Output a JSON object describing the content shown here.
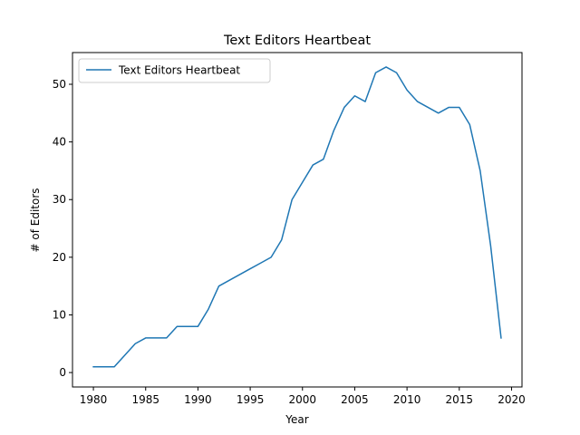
{
  "chart_data": {
    "type": "line",
    "title": "Text Editors Heartbeat",
    "xlabel": "Year",
    "ylabel": "# of Editors",
    "xlim": [
      1978,
      2021
    ],
    "ylim": [
      -2.5,
      55.5
    ],
    "xticks": [
      1980,
      1985,
      1990,
      1995,
      2000,
      2005,
      2010,
      2015,
      2020
    ],
    "yticks": [
      0,
      10,
      20,
      30,
      40,
      50
    ],
    "grid": false,
    "legend_position": "top-left",
    "series": [
      {
        "name": "Text Editors Heartbeat",
        "color": "#1f77b4",
        "x": [
          1980,
          1981,
          1982,
          1983,
          1984,
          1985,
          1986,
          1987,
          1988,
          1989,
          1990,
          1991,
          1992,
          1993,
          1994,
          1995,
          1996,
          1997,
          1998,
          1999,
          2000,
          2001,
          2002,
          2003,
          2004,
          2005,
          2006,
          2007,
          2008,
          2009,
          2010,
          2011,
          2012,
          2013,
          2014,
          2015,
          2016,
          2017,
          2018,
          2019
        ],
        "y": [
          1,
          1,
          1,
          3,
          5,
          6,
          6,
          6,
          8,
          8,
          8,
          11,
          15,
          16,
          17,
          18,
          19,
          20,
          23,
          30,
          33,
          36,
          37,
          42,
          46,
          48,
          47,
          52,
          53,
          52,
          49,
          47,
          46,
          45,
          46,
          46,
          43,
          35,
          22,
          6
        ]
      }
    ]
  }
}
